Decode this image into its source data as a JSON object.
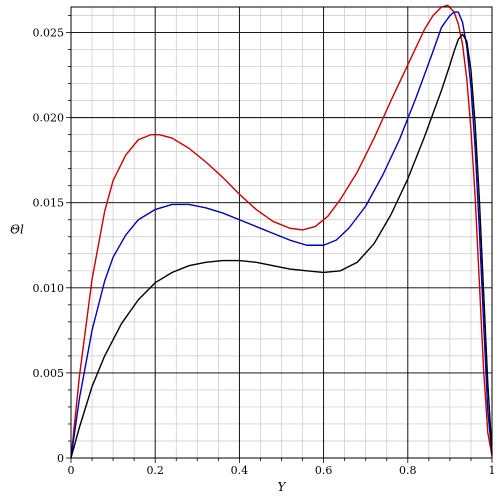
{
  "chart_data": {
    "type": "line",
    "xlabel": "Y",
    "ylabel": "Θl",
    "xlim": [
      0,
      1
    ],
    "ylim": [
      0,
      0.0265
    ],
    "grid": true,
    "x_ticks": [
      0,
      0.2,
      0.4,
      0.6,
      0.8,
      1
    ],
    "x_tick_labels": [
      "0",
      "0.2",
      "0.4",
      "0.6",
      "0.8",
      "1"
    ],
    "y_ticks": [
      0,
      0.005,
      0.01,
      0.015,
      0.02,
      0.025
    ],
    "y_tick_labels": [
      "0",
      "0.005",
      "0.010",
      "0.015",
      "0.020",
      "0.025"
    ],
    "series": [
      {
        "color": "#cc0000",
        "x": [
          0,
          0.02,
          0.05,
          0.08,
          0.1,
          0.13,
          0.16,
          0.19,
          0.21,
          0.24,
          0.28,
          0.32,
          0.36,
          0.4,
          0.44,
          0.48,
          0.52,
          0.55,
          0.58,
          0.61,
          0.64,
          0.68,
          0.72,
          0.76,
          0.8,
          0.84,
          0.86,
          0.88,
          0.895,
          0.91,
          0.92,
          0.93,
          0.94,
          0.95,
          0.96,
          0.97,
          0.98,
          0.99,
          1
        ],
        "y": [
          0,
          0.0048,
          0.0105,
          0.0145,
          0.0163,
          0.0178,
          0.0187,
          0.019,
          0.019,
          0.0188,
          0.0182,
          0.0174,
          0.0165,
          0.0155,
          0.0146,
          0.0139,
          0.0135,
          0.0134,
          0.0136,
          0.0142,
          0.0152,
          0.0168,
          0.0188,
          0.021,
          0.0231,
          0.0252,
          0.026,
          0.0265,
          0.0266,
          0.0262,
          0.0255,
          0.0243,
          0.0223,
          0.0193,
          0.0153,
          0.0103,
          0.0052,
          0.0015,
          0.0001
        ]
      },
      {
        "color": "#0000bb",
        "x": [
          0,
          0.02,
          0.05,
          0.08,
          0.1,
          0.13,
          0.16,
          0.2,
          0.24,
          0.28,
          0.32,
          0.36,
          0.4,
          0.44,
          0.48,
          0.52,
          0.56,
          0.6,
          0.63,
          0.66,
          0.7,
          0.74,
          0.78,
          0.82,
          0.86,
          0.88,
          0.9,
          0.91,
          0.92,
          0.93,
          0.94,
          0.95,
          0.96,
          0.97,
          0.98,
          0.99,
          1
        ],
        "y": [
          0,
          0.0035,
          0.0075,
          0.0104,
          0.0118,
          0.0131,
          0.014,
          0.0146,
          0.0149,
          0.0149,
          0.0147,
          0.0144,
          0.014,
          0.0136,
          0.0132,
          0.0128,
          0.0125,
          0.0125,
          0.0128,
          0.0135,
          0.0148,
          0.0166,
          0.0187,
          0.0212,
          0.0239,
          0.0253,
          0.026,
          0.0262,
          0.0262,
          0.0256,
          0.0242,
          0.0218,
          0.0182,
          0.0134,
          0.008,
          0.0028,
          0.0002
        ]
      },
      {
        "color": "#000000",
        "x": [
          0,
          0.02,
          0.05,
          0.08,
          0.12,
          0.16,
          0.2,
          0.24,
          0.28,
          0.32,
          0.36,
          0.4,
          0.44,
          0.48,
          0.52,
          0.56,
          0.6,
          0.64,
          0.68,
          0.72,
          0.76,
          0.8,
          0.84,
          0.88,
          0.9,
          0.91,
          0.92,
          0.93,
          0.94,
          0.95,
          0.96,
          0.97,
          0.98,
          0.99,
          1
        ],
        "y": [
          0,
          0.0018,
          0.0042,
          0.006,
          0.0079,
          0.0093,
          0.0103,
          0.0109,
          0.0113,
          0.0115,
          0.0116,
          0.0116,
          0.0115,
          0.0113,
          0.0111,
          0.011,
          0.0109,
          0.011,
          0.0115,
          0.0126,
          0.0143,
          0.0164,
          0.0189,
          0.0216,
          0.0231,
          0.0239,
          0.0246,
          0.0249,
          0.0245,
          0.0228,
          0.0196,
          0.0152,
          0.0098,
          0.0044,
          0.0003
        ]
      }
    ]
  }
}
